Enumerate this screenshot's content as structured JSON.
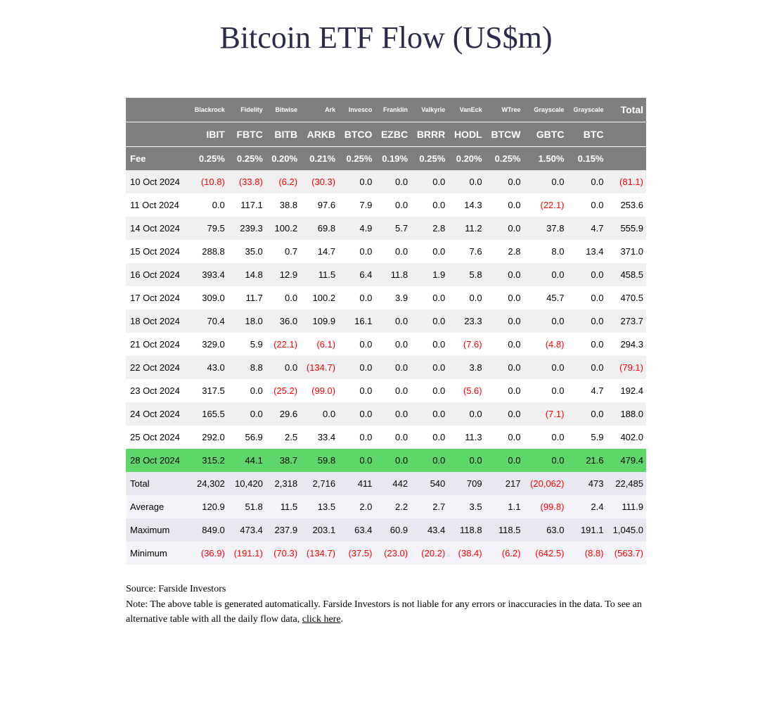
{
  "title": "Bitcoin ETF Flow (US$m)",
  "columns": {
    "issuers": [
      "",
      "Blackrock",
      "Fidelity",
      "Bitwise",
      "Ark",
      "Invesco",
      "Franklin",
      "Valkyrie",
      "VanEck",
      "WTree",
      "Grayscale",
      "Grayscale",
      "Total"
    ],
    "tickers": [
      "",
      "IBIT",
      "FBTC",
      "BITB",
      "ARKB",
      "BTCO",
      "EZBC",
      "BRRR",
      "HODL",
      "BTCW",
      "GBTC",
      "BTC",
      ""
    ],
    "fee_label": "Fee",
    "fees": [
      "0.25%",
      "0.25%",
      "0.20%",
      "0.21%",
      "0.25%",
      "0.19%",
      "0.25%",
      "0.20%",
      "0.25%",
      "1.50%",
      "0.15%",
      ""
    ]
  },
  "rows": [
    {
      "date": "10 Oct 2024",
      "v": [
        "(10.8)",
        "(33.8)",
        "(6.2)",
        "(30.3)",
        "0.0",
        "0.0",
        "0.0",
        "0.0",
        "0.0",
        "0.0",
        "0.0",
        "(81.1)"
      ]
    },
    {
      "date": "11 Oct 2024",
      "v": [
        "0.0",
        "117.1",
        "38.8",
        "97.6",
        "7.9",
        "0.0",
        "0.0",
        "14.3",
        "0.0",
        "(22.1)",
        "0.0",
        "253.6"
      ]
    },
    {
      "date": "14 Oct 2024",
      "v": [
        "79.5",
        "239.3",
        "100.2",
        "69.8",
        "4.9",
        "5.7",
        "2.8",
        "11.2",
        "0.0",
        "37.8",
        "4.7",
        "555.9"
      ]
    },
    {
      "date": "15 Oct 2024",
      "v": [
        "288.8",
        "35.0",
        "0.7",
        "14.7",
        "0.0",
        "0.0",
        "0.0",
        "7.6",
        "2.8",
        "8.0",
        "13.4",
        "371.0"
      ]
    },
    {
      "date": "16 Oct 2024",
      "v": [
        "393.4",
        "14.8",
        "12.9",
        "11.5",
        "6.4",
        "11.8",
        "1.9",
        "5.8",
        "0.0",
        "0.0",
        "0.0",
        "458.5"
      ]
    },
    {
      "date": "17 Oct 2024",
      "v": [
        "309.0",
        "11.7",
        "0.0",
        "100.2",
        "0.0",
        "3.9",
        "0.0",
        "0.0",
        "0.0",
        "45.7",
        "0.0",
        "470.5"
      ]
    },
    {
      "date": "18 Oct 2024",
      "v": [
        "70.4",
        "18.0",
        "36.0",
        "109.9",
        "16.1",
        "0.0",
        "0.0",
        "23.3",
        "0.0",
        "0.0",
        "0.0",
        "273.7"
      ]
    },
    {
      "date": "21 Oct 2024",
      "v": [
        "329.0",
        "5.9",
        "(22.1)",
        "(6.1)",
        "0.0",
        "0.0",
        "0.0",
        "(7.6)",
        "0.0",
        "(4.8)",
        "0.0",
        "294.3"
      ]
    },
    {
      "date": "22 Oct 2024",
      "v": [
        "43.0",
        "8.8",
        "0.0",
        "(134.7)",
        "0.0",
        "0.0",
        "0.0",
        "3.8",
        "0.0",
        "0.0",
        "0.0",
        "(79.1)"
      ]
    },
    {
      "date": "23 Oct 2024",
      "v": [
        "317.5",
        "0.0",
        "(25.2)",
        "(99.0)",
        "0.0",
        "0.0",
        "0.0",
        "(5.6)",
        "0.0",
        "0.0",
        "4.7",
        "192.4"
      ]
    },
    {
      "date": "24 Oct 2024",
      "v": [
        "165.5",
        "0.0",
        "29.6",
        "0.0",
        "0.0",
        "0.0",
        "0.0",
        "0.0",
        "0.0",
        "(7.1)",
        "0.0",
        "188.0"
      ]
    },
    {
      "date": "25 Oct 2024",
      "v": [
        "292.0",
        "56.9",
        "2.5",
        "33.4",
        "0.0",
        "0.0",
        "0.0",
        "11.3",
        "0.0",
        "0.0",
        "5.9",
        "402.0"
      ]
    },
    {
      "date": "28 Oct 2024",
      "v": [
        "315.2",
        "44.1",
        "38.7",
        "59.8",
        "0.0",
        "0.0",
        "0.0",
        "0.0",
        "0.0",
        "0.0",
        "21.6",
        "479.4"
      ],
      "highlight": true
    }
  ],
  "summary": [
    {
      "label": "Total",
      "v": [
        "24,302",
        "10,420",
        "2,318",
        "2,716",
        "411",
        "442",
        "540",
        "709",
        "217",
        "(20,062)",
        "473",
        "22,485"
      ]
    },
    {
      "label": "Average",
      "v": [
        "120.9",
        "51.8",
        "11.5",
        "13.5",
        "2.0",
        "2.2",
        "2.7",
        "3.5",
        "1.1",
        "(99.8)",
        "2.4",
        "111.9"
      ]
    },
    {
      "label": "Maximum",
      "v": [
        "849.0",
        "473.4",
        "237.9",
        "203.1",
        "63.4",
        "60.9",
        "43.4",
        "118.8",
        "118.5",
        "63.0",
        "191.1",
        "1,045.0"
      ]
    },
    {
      "label": "Minimum",
      "v": [
        "(36.9)",
        "(191.1)",
        "(70.3)",
        "(134.7)",
        "(37.5)",
        "(23.0)",
        "(20.2)",
        "(38.4)",
        "(6.2)",
        "(642.5)",
        "(8.8)",
        "(563.7)"
      ]
    }
  ],
  "footer": {
    "source": "Source: Farside Investors",
    "note_pre": "Note: The above table is generated automatically. Farside Investors is not liable for any errors or inaccuracies in the data. To see an alternative table with all the daily flow data, ",
    "link_text": "click here",
    "note_post": "."
  },
  "style": {
    "title_color": "#2a2a4a",
    "header_bg": "#7f7f7f",
    "header_fg": "#ffffff",
    "stripe_bg": "#f0f0f0",
    "highlight_bg": "#5dd66a",
    "summary_bg": "#e8e8f0",
    "neg_color": "#ff0000"
  }
}
